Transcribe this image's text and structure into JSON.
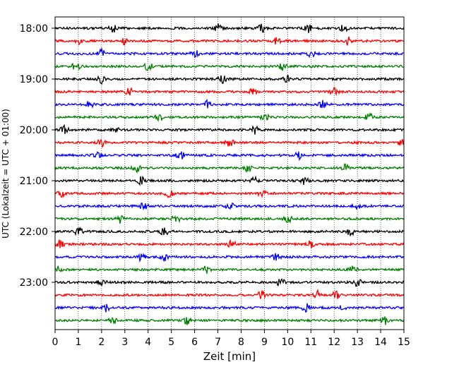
{
  "chart_data": {
    "type": "line",
    "subtype": "helicorder",
    "xlabel": "Zeit  [min]",
    "ylabel": "UTC (Lokalzeit = UTC + 01:00)",
    "xlim": [
      0,
      15
    ],
    "x_ticks": [
      "0",
      "1",
      "2",
      "3",
      "4",
      "5",
      "6",
      "7",
      "8",
      "9",
      "10",
      "11",
      "12",
      "13",
      "14",
      "15"
    ],
    "y_ticks": [
      "18:00",
      "19:00",
      "20:00",
      "21:00",
      "22:00",
      "23:00"
    ],
    "grid": "vertical-dotted",
    "trace_colors": [
      "#000000",
      "#ff0000",
      "#0000ff",
      "#008000"
    ],
    "rows": [
      {
        "start": "18:00",
        "color": "#000000",
        "events_min": [
          2.5,
          7.0,
          8.9,
          10.9,
          12.4
        ]
      },
      {
        "start": "18:15",
        "color": "#ff0000",
        "events_min": [
          1.0,
          3.0,
          9.5,
          12.6
        ]
      },
      {
        "start": "18:30",
        "color": "#0000ff",
        "events_min": [
          2.0,
          6.0,
          11.0
        ]
      },
      {
        "start": "18:45",
        "color": "#008000",
        "events_min": [
          0.9,
          4.0,
          9.8
        ]
      },
      {
        "start": "19:00",
        "color": "#000000",
        "events_min": [
          2.0,
          7.2,
          10.0
        ]
      },
      {
        "start": "19:15",
        "color": "#ff0000",
        "events_min": [
          3.2,
          8.5,
          12.0
        ]
      },
      {
        "start": "19:30",
        "color": "#0000ff",
        "events_min": [
          1.5,
          6.5,
          11.5
        ]
      },
      {
        "start": "19:45",
        "color": "#008000",
        "events_min": [
          4.5,
          9.0,
          13.5
        ]
      },
      {
        "start": "20:00",
        "color": "#000000",
        "events_min": [
          0.4,
          2.6,
          8.6
        ]
      },
      {
        "start": "20:15",
        "color": "#ff0000",
        "events_min": [
          2.0,
          7.5,
          14.9
        ]
      },
      {
        "start": "20:30",
        "color": "#0000ff",
        "events_min": [
          1.8,
          5.4,
          10.5
        ]
      },
      {
        "start": "20:45",
        "color": "#008000",
        "events_min": [
          3.5,
          8.3,
          12.5
        ]
      },
      {
        "start": "21:00",
        "color": "#000000",
        "events_min": [
          3.7,
          8.6,
          10.7
        ]
      },
      {
        "start": "21:15",
        "color": "#ff0000",
        "events_min": [
          0.3,
          4.9,
          8.9
        ]
      },
      {
        "start": "21:30",
        "color": "#0000ff",
        "events_min": [
          3.8,
          7.5,
          13.0
        ]
      },
      {
        "start": "21:45",
        "color": "#008000",
        "events_min": [
          2.8,
          5.2,
          10.0
        ]
      },
      {
        "start": "22:00",
        "color": "#000000",
        "events_min": [
          1.0,
          4.7,
          12.7
        ]
      },
      {
        "start": "22:15",
        "color": "#ff0000",
        "events_min": [
          0.2,
          7.6,
          11.0
        ]
      },
      {
        "start": "22:30",
        "color": "#0000ff",
        "events_min": [
          3.7,
          4.7,
          9.5
        ]
      },
      {
        "start": "22:45",
        "color": "#008000",
        "events_min": [
          0.1,
          6.5,
          12.8
        ]
      },
      {
        "start": "23:00",
        "color": "#000000",
        "events_min": [
          2.0,
          9.7,
          13.0
        ]
      },
      {
        "start": "23:15",
        "color": "#ff0000",
        "events_min": [
          8.9,
          11.3,
          12.1
        ]
      },
      {
        "start": "23:30",
        "color": "#0000ff",
        "events_min": [
          2.2,
          10.8,
          12.3
        ]
      },
      {
        "start": "23:45",
        "color": "#008000",
        "events_min": [
          2.5,
          5.7,
          14.2
        ]
      }
    ]
  }
}
